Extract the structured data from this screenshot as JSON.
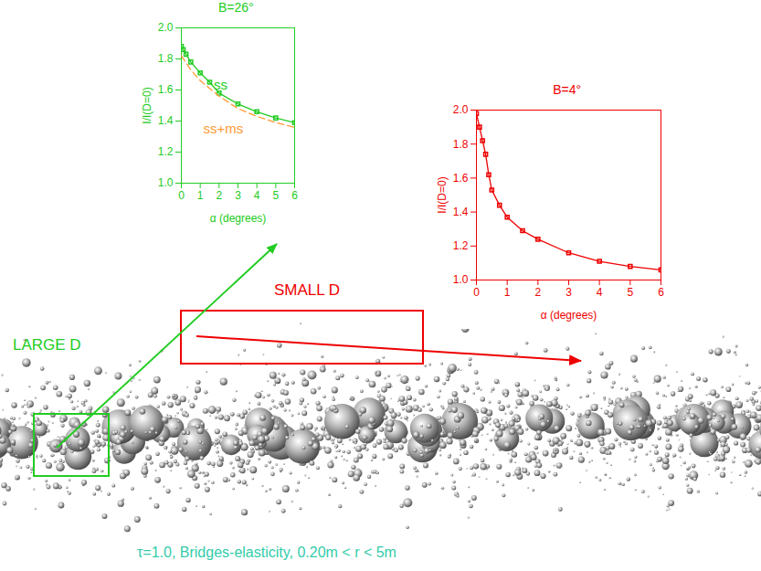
{
  "chart_data": [
    {
      "type": "line",
      "title": "B=26°",
      "color": "#22cc22",
      "xlabel": "α (degrees)",
      "ylabel": "I/I(D=0)",
      "xlim": [
        0,
        6
      ],
      "ylim": [
        1.0,
        2.0
      ],
      "xticks": [
        0,
        1,
        2,
        3,
        4,
        5,
        6
      ],
      "yticks": [
        {
          "value": 1.0,
          "label": "1.0"
        },
        {
          "value": 1.2,
          "label": "1.2"
        },
        {
          "value": 1.4,
          "label": "1.4"
        },
        {
          "value": 1.6,
          "label": "1.6"
        },
        {
          "value": 1.8,
          "label": "1.8"
        },
        {
          "value": 2.0,
          "label": "2.0"
        }
      ],
      "series": [
        {
          "name": "ss",
          "color": "#22cc22",
          "marker": "square",
          "line_style": "solid",
          "x": [
            0,
            0.1,
            0.25,
            0.5,
            1,
            1.5,
            2,
            3,
            4,
            5,
            6
          ],
          "values": [
            1.88,
            1.86,
            1.83,
            1.78,
            1.71,
            1.65,
            1.58,
            1.51,
            1.46,
            1.42,
            1.39
          ]
        },
        {
          "name": "ss+ms",
          "color": "#ff9933",
          "marker": "none",
          "line_style": "dashed",
          "x": [
            0,
            0.5,
            1,
            2,
            3,
            4,
            5,
            6
          ],
          "values": [
            1.82,
            1.73,
            1.66,
            1.56,
            1.48,
            1.43,
            1.39,
            1.36
          ]
        }
      ]
    },
    {
      "type": "line",
      "title": "B=4°",
      "color": "#ee0000",
      "xlabel": "α (degrees)",
      "ylabel": "I/I(D=0)",
      "xlim": [
        0,
        6
      ],
      "ylim": [
        1.0,
        2.0
      ],
      "xticks": [
        0,
        1,
        2,
        3,
        4,
        5,
        6
      ],
      "yticks": [
        {
          "value": 1.0,
          "label": "1.0"
        },
        {
          "value": 1.2,
          "label": "1.2"
        },
        {
          "value": 1.4,
          "label": "1.4"
        },
        {
          "value": 1.6,
          "label": "1.6"
        },
        {
          "value": 1.8,
          "label": "1.8"
        },
        {
          "value": 2.0,
          "label": "2.0"
        }
      ],
      "series": [
        {
          "color": "#ee0000",
          "marker": "square",
          "line_style": "solid",
          "x": [
            0,
            0.1,
            0.2,
            0.3,
            0.4,
            0.5,
            0.75,
            1,
            1.5,
            2,
            3,
            4,
            5,
            6
          ],
          "values": [
            1.98,
            1.9,
            1.82,
            1.74,
            1.62,
            1.53,
            1.44,
            1.37,
            1.29,
            1.24,
            1.16,
            1.11,
            1.08,
            1.06
          ]
        }
      ]
    }
  ],
  "image": {
    "labels": [
      {
        "text": "LARGE D",
        "color": "#22cc22"
      },
      {
        "text": "SMALL D",
        "color": "#ee0000"
      }
    ],
    "caption": {
      "text": "τ=1.0, Bridges-elasticity,  0.20m < r < 5m",
      "color": "#33ccaa"
    }
  }
}
